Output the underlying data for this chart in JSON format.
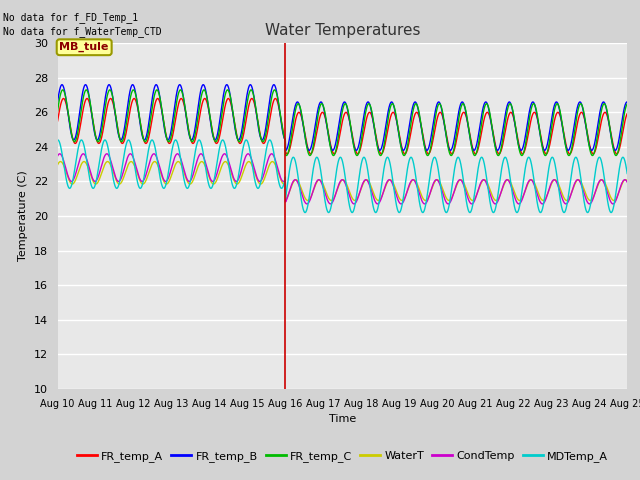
{
  "title": "Water Temperatures",
  "xlabel": "Time",
  "ylabel": "Temperature (C)",
  "ylim": [
    10,
    30
  ],
  "yticks": [
    10,
    12,
    14,
    16,
    18,
    20,
    22,
    24,
    26,
    28,
    30
  ],
  "fig_bg_color": "#d3d3d3",
  "plot_bg_color": "#e8e8e8",
  "vline_x": 16.0,
  "vline_color": "#cc0000",
  "header_text1": "No data for f_FD_Temp_1",
  "header_text2": "No data for f_WaterTemp_CTD",
  "annotation_label": "MB_tule",
  "series": {
    "FR_temp_A": {
      "color": "#ff0000",
      "phase": 0.0,
      "amplitude_before": 1.3,
      "mean_before": 25.5,
      "amplitude_after": 1.2,
      "mean_after": 24.8
    },
    "FR_temp_B": {
      "color": "#0000ff",
      "phase": 0.4,
      "amplitude_before": 1.6,
      "mean_before": 26.0,
      "amplitude_after": 1.4,
      "mean_after": 25.2
    },
    "FR_temp_C": {
      "color": "#00bb00",
      "phase": 0.2,
      "amplitude_before": 1.5,
      "mean_before": 25.8,
      "amplitude_after": 1.5,
      "mean_after": 25.0
    },
    "WaterT": {
      "color": "#cccc00",
      "phase": 0.8,
      "amplitude_before": 0.65,
      "mean_before": 22.5,
      "amplitude_after": 0.6,
      "mean_after": 21.5
    },
    "CondTemp": {
      "color": "#cc00cc",
      "phase": 1.0,
      "amplitude_before": 0.8,
      "mean_before": 22.8,
      "amplitude_after": 0.7,
      "mean_after": 21.4
    },
    "MDTemp_A": {
      "color": "#00cccc",
      "phase": 1.5,
      "amplitude_before": 1.4,
      "mean_before": 23.0,
      "amplitude_after": 1.6,
      "mean_after": 21.8
    }
  },
  "xstart": 10.0,
  "xend": 25.0,
  "xsplit": 16.0,
  "period": 0.62
}
